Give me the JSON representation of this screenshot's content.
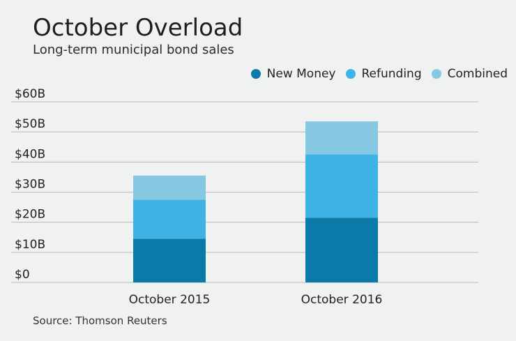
{
  "title": "October Overload",
  "subtitle": "Long-term municipal bond sales",
  "source": "Source: Thomson Reuters",
  "colors": {
    "new_money": "#0a7aa8",
    "refunding": "#3db3e6",
    "combined": "#86c8e2",
    "grid": "#b8bcbe",
    "background": "#f0f1f1"
  },
  "chart_data": {
    "type": "bar",
    "stacked": true,
    "title": "October Overload",
    "subtitle": "Long-term municipal bond sales",
    "categories": [
      "October 2015",
      "October 2016"
    ],
    "series": [
      {
        "name": "New Money",
        "values": [
          14.5,
          21.5
        ]
      },
      {
        "name": "Refunding",
        "values": [
          13,
          21
        ]
      },
      {
        "name": "Combined",
        "values": [
          8,
          11
        ]
      }
    ],
    "ylim": [
      0,
      60
    ],
    "yticks": [
      "$0",
      "$10B",
      "$20B",
      "$30B",
      "$40B",
      "$50B",
      "$60B"
    ],
    "grid": true,
    "legend_position": "top-right"
  }
}
